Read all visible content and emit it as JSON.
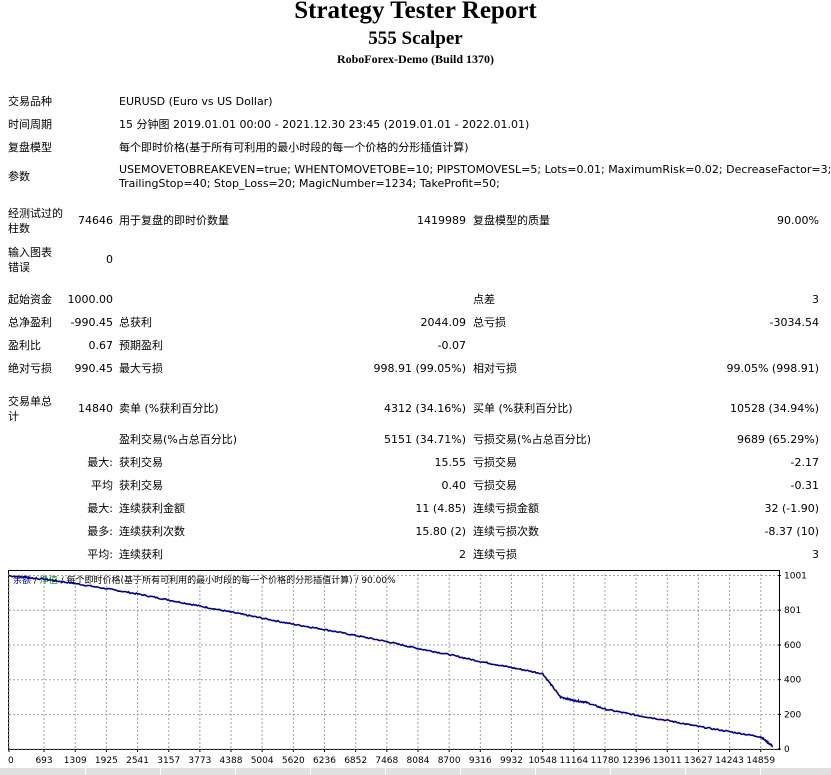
{
  "report": {
    "title": "Strategy Tester Report",
    "ea_name": "555 Scalper",
    "broker": "RoboForex-Demo (Build 1370)"
  },
  "info": {
    "symbol_label": "交易品种",
    "symbol_value": "EURUSD (Euro vs US Dollar)",
    "period_label": "时间周期",
    "period_value": "15 分钟图 2019.01.01 00:00 - 2021.12.30 23:45 (2019.01.01 - 2022.01.01)",
    "model_label": "复盘模型",
    "model_value": "每个即时价格(基于所有可利用的最小时段的每一个价格的分形插值计算)",
    "params_label": "参数",
    "params_line1": "USEMOVETOBREAKEVEN=true; WHENTOMOVETOBE=10; PIPSTOMOVESL=5; Lots=0.01; MaximumRisk=0.02; DecreaseFactor=3;",
    "params_line2": "TrailingStop=40; Stop_Loss=20; MagicNumber=1234; TakeProfit=50;"
  },
  "bars": {
    "label": "经测试过的柱数",
    "value": "74646",
    "ticks_label": "用于复盘的即时价数量",
    "ticks_value": "1419989",
    "quality_label": "复盘模型的质量",
    "quality_value": "90.00%"
  },
  "errors": {
    "label": "输入图表错误",
    "value": "0"
  },
  "stats": {
    "deposit_label": "起始资金",
    "deposit_value": "1000.00",
    "spread_label": "点差",
    "spread_value": "3",
    "net_label": "总净盈利",
    "net_value": "-990.45",
    "gross_profit_label": "总获利",
    "gross_profit_value": "2044.09",
    "gross_loss_label": "总亏损",
    "gross_loss_value": "-3034.54",
    "pf_label": "盈利比",
    "pf_value": "0.67",
    "payoff_label": "预期盈利",
    "payoff_value": "-0.07",
    "abs_dd_label": "绝对亏损",
    "abs_dd_value": "990.45",
    "max_dd_label": "最大亏损",
    "max_dd_value": "998.91 (99.05%)",
    "rel_dd_label": "相对亏损",
    "rel_dd_value": "99.05% (998.91)"
  },
  "trades": {
    "total_label": "交易单总计",
    "total_value": "14840",
    "short_label": "卖单 (%获利百分比)",
    "short_value": "4312 (34.16%)",
    "long_label": "买单 (%获利百分比)",
    "long_value": "10528 (34.94%)",
    "profit_trades_label": "盈利交易(%占总百分比)",
    "profit_trades_value": "5151 (34.71%)",
    "loss_trades_label": "亏损交易(%占总百分比)",
    "loss_trades_value": "9689 (65.29%)",
    "r1_prefix": "最大:",
    "r1_l_label": "获利交易",
    "r1_l_value": "15.55",
    "r1_r_label": "亏损交易",
    "r1_r_value": "-2.17",
    "r2_prefix": "平均",
    "r2_l_label": "获利交易",
    "r2_l_value": "0.40",
    "r2_r_label": "亏损交易",
    "r2_r_value": "-0.31",
    "r3_prefix": "最大:",
    "r3_l_label": "连续获利金额",
    "r3_l_value": "11 (4.85)",
    "r3_r_label": "连续亏损金额",
    "r3_r_value": "32 (-1.90)",
    "r4_prefix": "最多:",
    "r4_l_label": "连续获利次数",
    "r4_l_value": "15.80 (2)",
    "r4_r_label": "连续亏损次数",
    "r4_r_value": "-8.37 (10)",
    "r5_prefix": "平均:",
    "r5_l_label": "连续获利",
    "r5_l_value": "2",
    "r5_r_label": "连续亏损",
    "r5_r_value": "3"
  },
  "chart_legend": {
    "balance": "余额",
    "sep1": " / ",
    "equity": "净值",
    "rest": " / 每个即时价格(基于所有可利用的最小时段的每一个价格的分形插值计算) / 90.00%"
  },
  "colors": {
    "balance_line": "#00008b",
    "equity_line": "#008000",
    "grid": "#a0a0a0"
  },
  "chart_data": {
    "type": "line",
    "title": "",
    "xlabel": "",
    "ylabel": "",
    "xlim": [
      0,
      15200
    ],
    "ylim": [
      0,
      1010
    ],
    "grid": true,
    "x_ticks": [
      "0",
      "693",
      "1309",
      "1925",
      "2541",
      "3157",
      "3773",
      "4388",
      "5004",
      "5620",
      "6236",
      "6852",
      "7468",
      "8084",
      "8700",
      "9316",
      "9932",
      "10548",
      "11164",
      "11780",
      "12396",
      "13011",
      "13627",
      "14243",
      "14859"
    ],
    "y_ticks": [
      "0",
      "200",
      "400",
      "600",
      "801",
      "1001"
    ],
    "series": [
      {
        "name": "余额",
        "x": [
          0,
          693,
          1309,
          1925,
          2541,
          3157,
          3773,
          4388,
          5004,
          5620,
          6236,
          6852,
          7468,
          8084,
          8700,
          9316,
          9932,
          10548,
          10900,
          11164,
          11400,
          11780,
          12396,
          13011,
          13627,
          14243,
          14859,
          15100
        ],
        "y": [
          1000,
          980,
          955,
          925,
          895,
          860,
          825,
          790,
          755,
          720,
          690,
          655,
          620,
          580,
          545,
          505,
          470,
          435,
          300,
          280,
          270,
          230,
          195,
          165,
          130,
          100,
          70,
          15
        ]
      }
    ]
  }
}
